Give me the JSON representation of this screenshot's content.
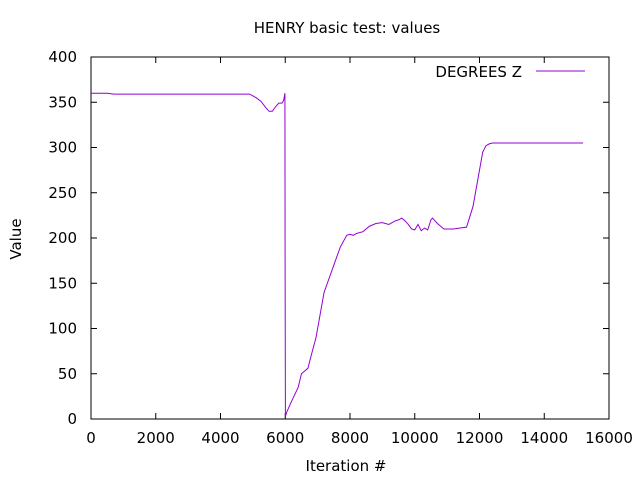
{
  "chart_data": {
    "type": "line",
    "title": "HENRY basic test: values",
    "xlabel": "Iteration #",
    "ylabel": "Value",
    "xlim": [
      0,
      16000
    ],
    "ylim": [
      0,
      400
    ],
    "xticks": [
      0,
      2000,
      4000,
      6000,
      8000,
      10000,
      12000,
      14000,
      16000
    ],
    "yticks": [
      0,
      50,
      100,
      150,
      200,
      250,
      300,
      350,
      400
    ],
    "xtick_labels": [
      "0",
      "2000",
      "4000",
      "6000",
      "8000",
      "10000",
      "12000",
      "14000",
      "16000"
    ],
    "ytick_labels": [
      "0",
      "50",
      "100",
      "150",
      "200",
      "250",
      "300",
      "350",
      "400"
    ],
    "grid": false,
    "legend_position": "top-right",
    "series": [
      {
        "name": "DEGREES Z",
        "color": "#9400d3",
        "x": [
          0,
          500,
          700,
          2000,
          4000,
          4900,
          5100,
          5250,
          5400,
          5500,
          5600,
          5700,
          5800,
          5900,
          5950,
          5990,
          5995,
          6005,
          6050,
          6200,
          6400,
          6500,
          6700,
          6800,
          6950,
          7100,
          7200,
          7300,
          7500,
          7700,
          7900,
          8000,
          8100,
          8200,
          8400,
          8600,
          8800,
          9000,
          9200,
          9400,
          9500,
          9600,
          9700,
          9800,
          9900,
          10000,
          10100,
          10200,
          10300,
          10400,
          10500,
          10550,
          10600,
          10700,
          10800,
          10900,
          11000,
          11200,
          11400,
          11600,
          11800,
          11900,
          12000,
          12100,
          12200,
          12300,
          12400,
          12600,
          13000,
          14000,
          15200
        ],
        "values": [
          360,
          360,
          359,
          359,
          359,
          359,
          355,
          351,
          344,
          340,
          340,
          345,
          349,
          349,
          352,
          360,
          180,
          3,
          8,
          20,
          35,
          50,
          56,
          70,
          90,
          120,
          140,
          150,
          170,
          190,
          203,
          204,
          203,
          205,
          207,
          213,
          216,
          217,
          215,
          219,
          220,
          222,
          219,
          215,
          210,
          209,
          215,
          208,
          211,
          209,
          220,
          222,
          220,
          216,
          213,
          210,
          210,
          210,
          211,
          212,
          235,
          255,
          275,
          295,
          302,
          304,
          305,
          305,
          305,
          305,
          305
        ]
      }
    ]
  }
}
